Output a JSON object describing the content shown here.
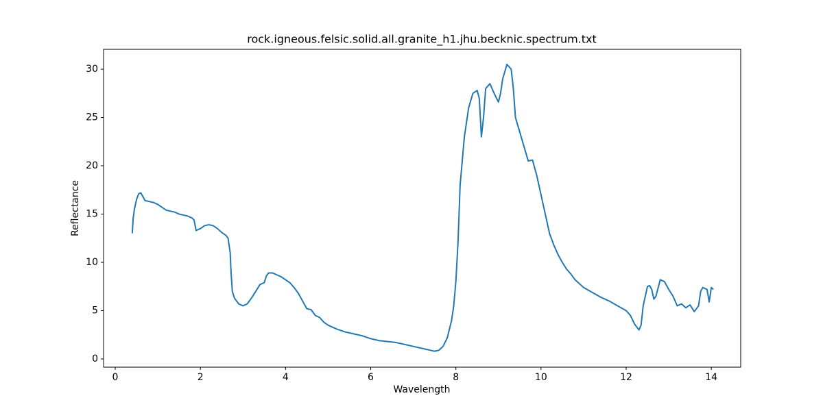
{
  "chart_data": {
    "type": "line",
    "title": "rock.igneous.felsic.solid.all.granite_h1.jhu.becknic.spectrum.txt",
    "x_label": "Wavelength",
    "y_label": "Reflectance",
    "color": "#1f77b4",
    "xlim": [
      -0.274,
      14.69
    ],
    "ylim": [
      -0.85,
      32.06
    ],
    "xticks": [
      0,
      2,
      4,
      6,
      8,
      10,
      12,
      14
    ],
    "yticks": [
      0,
      5,
      10,
      15,
      20,
      25,
      30
    ],
    "x": [
      0.4,
      0.42,
      0.45,
      0.5,
      0.55,
      0.6,
      0.65,
      0.7,
      0.8,
      0.9,
      1.0,
      1.1,
      1.2,
      1.3,
      1.4,
      1.5,
      1.6,
      1.7,
      1.8,
      1.85,
      1.9,
      2.0,
      2.1,
      2.2,
      2.3,
      2.4,
      2.5,
      2.6,
      2.65,
      2.7,
      2.72,
      2.75,
      2.8,
      2.9,
      3.0,
      3.1,
      3.2,
      3.3,
      3.4,
      3.5,
      3.55,
      3.6,
      3.7,
      3.8,
      3.9,
      4.0,
      4.1,
      4.2,
      4.3,
      4.4,
      4.5,
      4.6,
      4.7,
      4.8,
      4.9,
      5.0,
      5.2,
      5.4,
      5.6,
      5.8,
      6.0,
      6.2,
      6.4,
      6.6,
      6.8,
      7.0,
      7.2,
      7.4,
      7.5,
      7.6,
      7.7,
      7.8,
      7.9,
      7.95,
      8.0,
      8.05,
      8.1,
      8.2,
      8.3,
      8.4,
      8.5,
      8.55,
      8.6,
      8.65,
      8.7,
      8.8,
      8.9,
      9.0,
      9.05,
      9.1,
      9.2,
      9.3,
      9.35,
      9.4,
      9.5,
      9.6,
      9.7,
      9.8,
      9.9,
      10.0,
      10.1,
      10.2,
      10.3,
      10.4,
      10.5,
      10.6,
      10.7,
      10.8,
      11.0,
      11.2,
      11.4,
      11.6,
      11.8,
      12.0,
      12.1,
      12.2,
      12.3,
      12.35,
      12.4,
      12.5,
      12.55,
      12.6,
      12.65,
      12.7,
      12.8,
      12.9,
      13.0,
      13.1,
      13.2,
      13.3,
      13.4,
      13.5,
      13.6,
      13.7,
      13.75,
      13.8,
      13.9,
      13.95,
      14.0,
      14.05
    ],
    "values": [
      13.0,
      14.5,
      15.5,
      16.5,
      17.1,
      17.2,
      16.8,
      16.4,
      16.3,
      16.2,
      16.0,
      15.7,
      15.4,
      15.3,
      15.2,
      15.0,
      14.9,
      14.8,
      14.6,
      14.4,
      13.3,
      13.5,
      13.8,
      13.9,
      13.8,
      13.5,
      13.1,
      12.8,
      12.5,
      11.0,
      9.0,
      7.0,
      6.3,
      5.7,
      5.5,
      5.7,
      6.3,
      7.0,
      7.7,
      7.9,
      8.6,
      8.9,
      8.9,
      8.7,
      8.5,
      8.2,
      7.9,
      7.4,
      6.8,
      6.0,
      5.2,
      5.1,
      4.5,
      4.3,
      3.8,
      3.5,
      3.1,
      2.8,
      2.6,
      2.4,
      2.1,
      1.9,
      1.8,
      1.7,
      1.5,
      1.3,
      1.1,
      0.9,
      0.8,
      0.9,
      1.3,
      2.2,
      4.0,
      5.5,
      8.0,
      12.0,
      18.0,
      23.0,
      26.0,
      27.5,
      27.8,
      27.0,
      23.0,
      25.0,
      28.0,
      28.5,
      27.5,
      26.6,
      27.5,
      29.0,
      30.5,
      30.0,
      28.0,
      25.0,
      23.5,
      22.0,
      20.5,
      20.6,
      19.0,
      17.0,
      15.0,
      13.0,
      11.8,
      10.8,
      10.0,
      9.3,
      8.8,
      8.2,
      7.4,
      6.9,
      6.4,
      6.0,
      5.5,
      5.0,
      4.5,
      3.6,
      3.0,
      3.5,
      5.5,
      7.5,
      7.6,
      7.2,
      6.2,
      6.5,
      8.2,
      8.0,
      7.2,
      6.5,
      5.5,
      5.7,
      5.3,
      5.6,
      4.9,
      5.5,
      7.0,
      7.4,
      7.2,
      5.9,
      7.4,
      7.2
    ]
  }
}
